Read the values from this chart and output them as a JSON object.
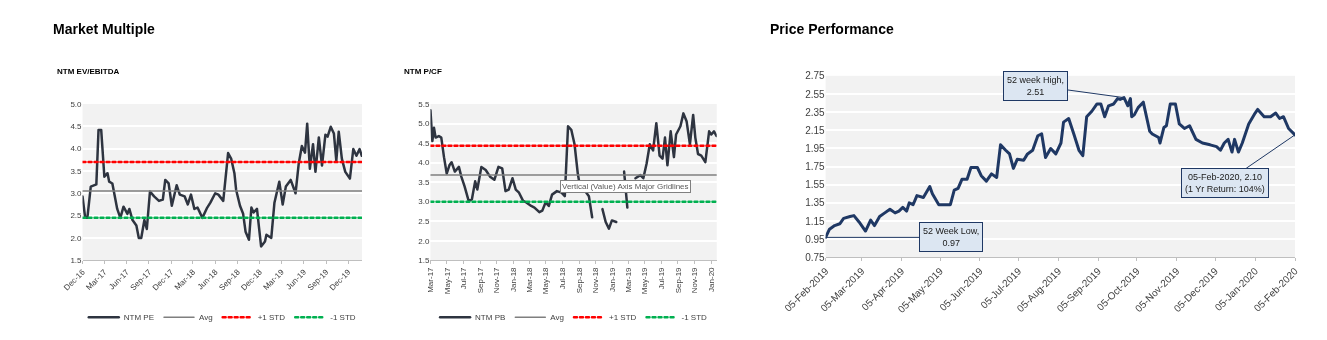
{
  "chart_data": [
    {
      "type": "line",
      "title": "Market Multiple",
      "subtitle": "NTM EV/EBITDA",
      "xlim": [
        "2016-12-01",
        "2020-01-27"
      ],
      "xticks": [
        {
          "value": "2016-12-01",
          "label": "Dec-16"
        },
        {
          "value": "2017-03-01",
          "label": "Mar-17"
        },
        {
          "value": "2017-06-01",
          "label": "Jun-17"
        },
        {
          "value": "2017-09-01",
          "label": "Sep-17"
        },
        {
          "value": "2017-12-01",
          "label": "Dec-17"
        },
        {
          "value": "2018-03-01",
          "label": "Mar-18"
        },
        {
          "value": "2018-06-01",
          "label": "Jun-18"
        },
        {
          "value": "2018-09-01",
          "label": "Sep-18"
        },
        {
          "value": "2018-12-01",
          "label": "Dec-18"
        },
        {
          "value": "2019-03-01",
          "label": "Mar-19"
        },
        {
          "value": "2019-06-01",
          "label": "Jun-19"
        },
        {
          "value": "2019-09-01",
          "label": "Sep-19"
        },
        {
          "value": "2019-12-01",
          "label": "Dec-19"
        }
      ],
      "ylim": [
        1.5,
        5.0
      ],
      "yticks": [
        1.5,
        {
          "value": 2,
          "label": "2.0"
        },
        2.5,
        {
          "value": 3,
          "label": "3.0"
        },
        3.5,
        {
          "value": 4,
          "label": "4.0"
        },
        4.5,
        {
          "value": 5,
          "label": "5.0"
        }
      ],
      "grid": "y",
      "legend": "bottom",
      "marker": "none",
      "line_style": "solid",
      "series": [
        {
          "name": "NTM PE",
          "color": "#2e3440",
          "x": [
            "2016-12-01",
            "2016-12-12",
            "2016-12-21",
            "2017-01-04",
            "2017-01-27",
            "2017-02-05",
            "2017-02-16",
            "2017-03-01",
            "2017-03-14",
            "2017-03-21",
            "2017-04-03",
            "2017-04-23",
            "2017-05-06",
            "2017-05-19",
            "2017-06-04",
            "2017-06-12",
            "2017-06-25",
            "2017-07-11",
            "2017-07-21",
            "2017-07-31",
            "2017-08-13",
            "2017-08-23",
            "2017-09-05",
            "2017-09-22",
            "2017-10-12",
            "2017-10-28",
            "2017-11-07",
            "2017-11-21",
            "2017-12-04",
            "2017-12-24",
            "2018-01-06",
            "2018-01-26",
            "2018-02-08",
            "2018-02-21",
            "2018-03-07",
            "2018-03-20",
            "2018-04-09",
            "2018-04-29",
            "2018-05-12",
            "2018-06-01",
            "2018-06-14",
            "2018-07-04",
            "2018-07-24",
            "2018-08-06",
            "2018-08-19",
            "2018-08-26",
            "2018-09-11",
            "2018-09-24",
            "2018-10-04",
            "2018-10-18",
            "2018-10-28",
            "2018-11-06",
            "2018-11-20",
            "2018-12-07",
            "2018-12-23",
            "2018-12-29",
            "2019-01-18",
            "2019-01-31",
            "2019-02-20",
            "2019-03-06",
            "2019-03-19",
            "2019-04-08",
            "2019-04-28",
            "2019-05-11",
            "2019-05-24",
            "2019-06-06",
            "2019-06-15",
            "2019-06-26",
            "2019-07-09",
            "2019-07-19",
            "2019-08-02",
            "2019-08-15",
            "2019-08-29",
            "2019-09-07",
            "2019-09-20",
            "2019-10-03",
            "2019-10-13",
            "2019-10-23",
            "2019-11-05",
            "2019-11-19",
            "2019-12-08",
            "2019-12-22",
            "2020-01-04",
            "2020-01-17",
            "2020-01-26"
          ],
          "values": [
            2.93,
            2.45,
            2.45,
            3.15,
            3.2,
            4.42,
            4.42,
            3.37,
            3.45,
            3.26,
            3.22,
            2.65,
            2.45,
            2.7,
            2.54,
            2.65,
            2.4,
            2.28,
            2.0,
            2.0,
            2.4,
            2.2,
            3.04,
            2.93,
            2.83,
            2.86,
            3.3,
            3.22,
            2.72,
            3.18,
            2.97,
            2.93,
            2.75,
            2.97,
            2.65,
            2.68,
            2.45,
            2.68,
            2.79,
            3.0,
            2.97,
            2.83,
            3.9,
            3.77,
            3.45,
            3.08,
            2.72,
            2.54,
            2.14,
            1.96,
            2.68,
            2.57,
            2.65,
            1.81,
            1.92,
            2.07,
            2.0,
            2.79,
            3.26,
            2.75,
            3.15,
            3.3,
            3.0,
            3.66,
            4.06,
            3.91,
            4.56,
            3.55,
            4.1,
            3.48,
            4.25,
            3.62,
            4.31,
            4.27,
            4.49,
            4.34,
            3.73,
            4.38,
            3.77,
            3.48,
            3.33,
            3.99,
            3.84,
            3.99,
            3.84
          ]
        }
      ],
      "ref_lines": [
        {
          "axis": "y",
          "value": 3.05,
          "label": "Avg",
          "color": "#7f7f7f",
          "line_style": "solid"
        },
        {
          "axis": "y",
          "value": 3.7,
          "label": "+1 STD",
          "color": "#ff0000",
          "line_style": "dotted"
        },
        {
          "axis": "y",
          "value": 2.45,
          "label": "-1 STD",
          "color": "#00b050",
          "line_style": "dotted"
        }
      ]
    },
    {
      "type": "line",
      "subtitle": "NTM P/CF",
      "xlim": [
        "2017-03-01",
        "2020-01-22"
      ],
      "xticks": [
        {
          "value": "2017-03-01",
          "label": "Mar-17"
        },
        {
          "value": "2017-05-01",
          "label": "May-17"
        },
        {
          "value": "2017-07-01",
          "label": "Jul-17"
        },
        {
          "value": "2017-09-01",
          "label": "Sep-17"
        },
        {
          "value": "2017-11-01",
          "label": "Nov-17"
        },
        {
          "value": "2018-01-01",
          "label": "Jan-18"
        },
        {
          "value": "2018-03-01",
          "label": "Mar-18"
        },
        {
          "value": "2018-05-01",
          "label": "May-18"
        },
        {
          "value": "2018-07-01",
          "label": "Jul-18"
        },
        {
          "value": "2018-09-01",
          "label": "Sep-18"
        },
        {
          "value": "2018-11-01",
          "label": "Nov-18"
        },
        {
          "value": "2019-01-01",
          "label": "Jan-19"
        },
        {
          "value": "2019-03-01",
          "label": "Mar-19"
        },
        {
          "value": "2019-05-01",
          "label": "May-19"
        },
        {
          "value": "2019-07-01",
          "label": "Jul-19"
        },
        {
          "value": "2019-09-01",
          "label": "Sep-19"
        },
        {
          "value": "2019-11-01",
          "label": "Nov-19"
        },
        {
          "value": "2020-01-01",
          "label": "Jan-20"
        }
      ],
      "ylim": [
        1.5,
        5.5
      ],
      "yticks": [
        1.5,
        {
          "value": 2,
          "label": "2.0"
        },
        2.5,
        {
          "value": 3,
          "label": "3.0"
        },
        3.5,
        {
          "value": 4,
          "label": "4.0"
        },
        4.5,
        {
          "value": 5,
          "label": "5.0"
        },
        5.5
      ],
      "grid": "y",
      "legend": "bottom",
      "marker": "none",
      "line_style": "solid",
      "series": [
        {
          "name": "NTM PB",
          "color": "#2e3440",
          "x": [
            "2017-03-01",
            "2017-03-08",
            "2017-03-14",
            "2017-03-20",
            "2017-04-01",
            "2017-04-10",
            "2017-04-20",
            "2017-04-30",
            "2017-05-10",
            "2017-05-18",
            "2017-05-30",
            "2017-06-14",
            "2017-06-23",
            "2017-07-05",
            "2017-07-20",
            "2017-08-01",
            "2017-08-13",
            "2017-08-21",
            "2017-09-05",
            "2017-09-21",
            "2017-10-07",
            "2017-10-23",
            "2017-11-07",
            "2017-11-21",
            "2017-12-03",
            "2017-12-15",
            "2017-12-29",
            "2018-01-10",
            "2018-01-22",
            "2018-02-06",
            "2018-02-18",
            "2018-03-08",
            "2018-03-20",
            "2018-04-07",
            "2018-04-18",
            "2018-04-30",
            "2018-05-12",
            "2018-05-24",
            "2018-06-11",
            "2018-06-28",
            "2018-07-10",
            "2018-07-22",
            "2018-08-03",
            "2018-08-15",
            "2018-08-27",
            "2018-09-07",
            "2018-09-23",
            "2018-10-07",
            "2018-10-19",
            "2018-10-31",
            "2018-11-14",
            "2018-11-26",
            "2018-12-08",
            "2018-12-20",
            "2018-12-31",
            "2019-01-16",
            "2019-01-28",
            "2019-02-14",
            "2019-02-26",
            "2019-03-12",
            "2019-03-28",
            "2019-04-15",
            "2019-04-26",
            "2019-05-08",
            "2019-05-20",
            "2019-06-01",
            "2019-06-13",
            "2019-06-25",
            "2019-07-06",
            "2019-07-15",
            "2019-07-24",
            "2019-08-05",
            "2019-08-17",
            "2019-08-25",
            "2019-09-10",
            "2019-09-21",
            "2019-10-03",
            "2019-10-15",
            "2019-10-27",
            "2019-11-04",
            "2019-11-14",
            "2019-11-26",
            "2019-12-11",
            "2019-12-25",
            "2020-01-02",
            "2020-01-12",
            "2020-01-21"
          ],
          "values": [
            5.34,
            4.55,
            4.89,
            4.64,
            4.68,
            4.64,
            4.14,
            3.72,
            3.93,
            4.01,
            3.77,
            3.89,
            3.64,
            3.39,
            3.02,
            3.06,
            3.52,
            3.31,
            3.89,
            3.81,
            3.64,
            3.56,
            3.89,
            3.85,
            3.27,
            3.31,
            3.6,
            3.31,
            3.23,
            3.02,
            2.98,
            2.89,
            2.85,
            2.73,
            2.77,
            2.98,
            2.89,
            3.18,
            3.27,
            3.23,
            3.14,
            4.93,
            4.84,
            4.47,
            3.72,
            3.27,
            3.27,
            3.14,
            2.6,
            null,
            null,
            2.81,
            2.48,
            2.31,
            2.52,
            2.48,
            null,
            3.77,
            2.85,
            null,
            3.6,
            3.68,
            3.6,
            3.97,
            4.47,
            4.31,
            5.01,
            4.18,
            4.1,
            4.64,
            3.93,
            4.8,
            4.14,
            4.72,
            4.93,
            5.26,
            5.05,
            4.47,
            5.22,
            4.64,
            4.22,
            4.18,
            4.01,
            4.8,
            4.72,
            4.8,
            4.68
          ]
        }
      ],
      "ref_lines": [
        {
          "axis": "y",
          "value": 3.68,
          "label": "Avg",
          "color": "#7f7f7f",
          "line_style": "solid"
        },
        {
          "axis": "y",
          "value": 4.43,
          "label": "+1 STD",
          "color": "#ff0000",
          "line_style": "dotted"
        },
        {
          "axis": "y",
          "value": 3.0,
          "label": "-1 STD",
          "color": "#00b050",
          "line_style": "dotted"
        }
      ],
      "annotations": [
        "Vertical (Value) Axis Major Gridlines"
      ]
    },
    {
      "type": "line",
      "title": "Price Performance",
      "xlim": [
        "2019-02-05",
        "2020-02-05"
      ],
      "xticks": [
        {
          "value": "2019-02-05",
          "label": "05-Feb-2019"
        },
        {
          "value": "2019-03-05",
          "label": "05-Mar-2019"
        },
        {
          "value": "2019-04-05",
          "label": "05-Apr-2019"
        },
        {
          "value": "2019-05-05",
          "label": "05-May-2019"
        },
        {
          "value": "2019-06-05",
          "label": "05-Jun-2019"
        },
        {
          "value": "2019-07-05",
          "label": "05-Jul-2019"
        },
        {
          "value": "2019-08-05",
          "label": "05-Aug-2019"
        },
        {
          "value": "2019-09-05",
          "label": "05-Sep-2019"
        },
        {
          "value": "2019-10-05",
          "label": "05-Oct-2019"
        },
        {
          "value": "2019-11-05",
          "label": "05-Nov-2019"
        },
        {
          "value": "2019-12-05",
          "label": "05-Dec-2019"
        },
        {
          "value": "2020-01-05",
          "label": "05-Jan-2020"
        },
        {
          "value": "2020-02-05",
          "label": "05-Feb-2020"
        }
      ],
      "ylim": [
        0.75,
        2.75
      ],
      "yticks": [
        0.75,
        0.95,
        1.15,
        1.35,
        1.55,
        1.75,
        1.95,
        2.15,
        2.35,
        2.55,
        2.75
      ],
      "grid": "y",
      "marker": "none",
      "line_style": "solid",
      "series": [
        {
          "color": "#1f3864",
          "x": [
            "2019-02-05",
            "2019-02-08",
            "2019-02-12",
            "2019-02-16",
            "2019-02-19",
            "2019-02-24",
            "2019-02-27",
            "2019-03-03",
            "2019-03-08",
            "2019-03-12",
            "2019-03-15",
            "2019-03-19",
            "2019-03-23",
            "2019-03-27",
            "2019-03-31",
            "2019-04-03",
            "2019-04-06",
            "2019-04-09",
            "2019-04-11",
            "2019-04-14",
            "2019-04-17",
            "2019-04-22",
            "2019-04-27",
            "2019-04-29",
            "2019-05-04",
            "2019-05-13",
            "2019-05-16",
            "2019-05-19",
            "2019-05-22",
            "2019-05-26",
            "2019-05-29",
            "2019-06-03",
            "2019-06-06",
            "2019-06-10",
            "2019-06-14",
            "2019-06-18",
            "2019-06-21",
            "2019-06-25",
            "2019-06-28",
            "2019-07-01",
            "2019-07-04",
            "2019-07-09",
            "2019-07-12",
            "2019-07-16",
            "2019-07-20",
            "2019-07-23",
            "2019-07-26",
            "2019-07-30",
            "2019-08-03",
            "2019-08-07",
            "2019-08-09",
            "2019-08-13",
            "2019-08-17",
            "2019-08-21",
            "2019-08-24",
            "2019-08-27",
            "2019-08-31",
            "2019-09-04",
            "2019-09-07",
            "2019-09-10",
            "2019-09-13",
            "2019-09-17",
            "2019-09-20",
            "2019-09-22",
            "2019-09-25",
            "2019-09-28",
            "2019-09-30",
            "2019-10-01",
            "2019-10-03",
            "2019-10-06",
            "2019-10-10",
            "2019-10-15",
            "2019-10-17",
            "2019-10-22",
            "2019-10-23",
            "2019-10-26",
            "2019-10-28",
            "2019-10-31",
            "2019-11-04",
            "2019-11-07",
            "2019-11-11",
            "2019-11-15",
            "2019-11-20",
            "2019-11-25",
            "2019-12-01",
            "2019-12-06",
            "2019-12-09",
            "2019-12-12",
            "2019-12-15",
            "2019-12-18",
            "2019-12-20",
            "2019-12-23",
            "2019-12-26",
            "2019-12-31",
            "2020-01-05",
            "2020-01-07",
            "2020-01-12",
            "2020-01-17",
            "2020-01-21",
            "2020-01-24",
            "2020-01-27",
            "2020-01-31",
            "2020-02-05"
          ],
          "values": [
            0.97,
            1.06,
            1.1,
            1.12,
            1.18,
            1.2,
            1.21,
            1.14,
            1.04,
            1.16,
            1.1,
            1.2,
            1.24,
            1.28,
            1.24,
            1.26,
            1.3,
            1.26,
            1.35,
            1.33,
            1.43,
            1.41,
            1.53,
            1.45,
            1.33,
            1.33,
            1.49,
            1.51,
            1.61,
            1.61,
            1.74,
            1.74,
            1.65,
            1.59,
            1.67,
            1.63,
            1.99,
            1.93,
            1.89,
            1.73,
            1.83,
            1.82,
            1.89,
            1.93,
            2.09,
            2.11,
            1.85,
            1.95,
            1.89,
            2.01,
            2.24,
            2.28,
            2.11,
            1.93,
            1.87,
            2.3,
            2.36,
            2.44,
            2.44,
            2.3,
            2.42,
            2.44,
            2.5,
            2.49,
            2.51,
            2.42,
            2.5,
            2.3,
            2.32,
            2.4,
            2.46,
            2.14,
            2.11,
            2.07,
            2.01,
            2.18,
            2.2,
            2.44,
            2.44,
            2.22,
            2.17,
            2.2,
            2.05,
            2.01,
            1.99,
            1.97,
            1.93,
            2.01,
            2.05,
            1.91,
            2.05,
            1.91,
            2.01,
            2.22,
            2.34,
            2.38,
            2.3,
            2.3,
            2.34,
            2.28,
            2.3,
            2.17,
            2.1
          ]
        }
      ],
      "annotations": [
        {
          "text": "52 week High,\n2.51",
          "x": "2019-09-25",
          "y": 2.51
        },
        {
          "text": "52 Week Low,\n0.97",
          "x": "2019-02-05",
          "y": 0.97
        },
        {
          "text": "05-Feb-2020, 2.10\n(1 Yr Return: 104%)",
          "x": "2020-02-05",
          "y": 2.1
        }
      ]
    }
  ]
}
